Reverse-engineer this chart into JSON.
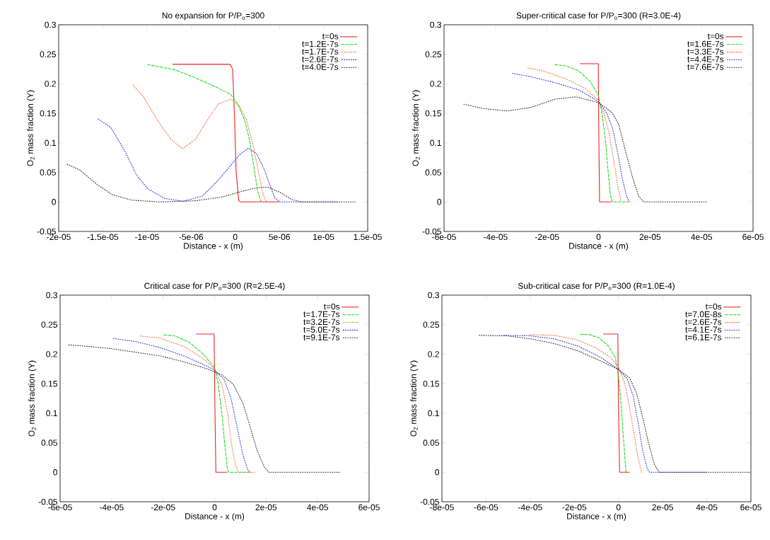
{
  "chart_data": [
    {
      "type": "line",
      "title": "No expansion for P/P$_{o}$=300",
      "xlabel": "Distance - x (m)",
      "ylabel": "O$_{2}$ mass fraction (Y)",
      "legend": "top right",
      "xlim": [
        -2e-05,
        1.5e-05
      ],
      "ylim": [
        -0.05,
        0.3
      ],
      "xticks": [
        {
          "value": -2e-05,
          "label": "-2e-05"
        },
        {
          "value": -1.5e-05,
          "label": "-1.5e-05"
        },
        {
          "value": -1e-05,
          "label": "-1e-05"
        },
        {
          "value": -5e-06,
          "label": "-5e-06"
        },
        0,
        {
          "value": 5e-06,
          "label": "5e-06"
        },
        {
          "value": 1e-05,
          "label": "1e-05"
        },
        {
          "value": 1.5e-05,
          "label": "1.5e-05"
        }
      ],
      "yticks": [
        -0.05,
        0,
        0.05,
        0.1,
        0.15,
        0.2,
        0.25,
        0.3
      ],
      "series": [
        {
          "name": "t=0s",
          "color": "#ee2222",
          "line_style": "solid",
          "x": [
            -7.1e-06,
            -6e-07,
            -3e-07,
            -1e-07,
            1e-07,
            4e-07,
            6e-07,
            5e-06
          ],
          "values": [
            0.233,
            0.233,
            0.225,
            0.15,
            0.05,
            0.002,
            0,
            0
          ]
        },
        {
          "name": "t=1.2E-7s",
          "color": "#22dd22",
          "line_style": "dashed",
          "x": [
            -1.01e-05,
            -6.9e-06,
            -4.5e-06,
            -2.1e-06,
            -5e-07,
            2.7e-07,
            1.07e-06,
            1.6e-06,
            2.13e-06,
            2.53e-06,
            2.93e-06
          ],
          "values": [
            0.233,
            0.224,
            0.21,
            0.194,
            0.182,
            0.166,
            0.138,
            0.106,
            0.058,
            0.018,
            0
          ]
        },
        {
          "name": "t=1.7E-7s",
          "color": "#ff6a3a",
          "line_style": "dotted",
          "x": [
            -1.17e-05,
            -1.04e-05,
            -8.8e-06,
            -7.3e-06,
            -6e-06,
            -4.5e-06,
            -3.2e-06,
            -1.9e-06,
            -5e-07,
            5e-07,
            1.3e-06,
            2.1e-06,
            2.7e-06,
            3.2e-06,
            3.6e-06,
            4.8e-06
          ],
          "values": [
            0.2,
            0.178,
            0.138,
            0.106,
            0.09,
            0.106,
            0.138,
            0.166,
            0.174,
            0.162,
            0.138,
            0.09,
            0.046,
            0.01,
            0,
            0
          ]
        },
        {
          "name": "t=2.6E-7s",
          "color": "#3333dd",
          "line_style": "dotted",
          "x": [
            -1.57e-05,
            -1.41e-05,
            -1.25e-05,
            -1.12e-05,
            -9.9e-06,
            -8e-06,
            -5.9e-06,
            -3.7e-06,
            -2.1e-06,
            -5e-07,
            5e-07,
            1.5e-06,
            2.4e-06,
            3.2e-06,
            3.9e-06,
            4.5e-06,
            5.1e-06,
            1.15e-05
          ],
          "values": [
            0.142,
            0.126,
            0.086,
            0.046,
            0.022,
            0.006,
            0.001,
            0.01,
            0.034,
            0.062,
            0.08,
            0.091,
            0.082,
            0.058,
            0.03,
            0.006,
            0,
            0
          ]
        },
        {
          "name": "t=4.0E-7s",
          "color": "#333333",
          "line_style": "dotted",
          "x": [
            -1.92e-05,
            -1.76e-05,
            -1.57e-05,
            -1.39e-05,
            -1.17e-05,
            -8.5e-06,
            -4.5e-06,
            -1.6e-06,
            8e-07,
            2.4e-06,
            3.7e-06,
            5.1e-06,
            6.4e-06,
            7.5e-06,
            1.36e-05
          ],
          "values": [
            0.065,
            0.054,
            0.03,
            0.012,
            0.003,
            0,
            0.002,
            0.008,
            0.018,
            0.024,
            0.025,
            0.016,
            0.004,
            0,
            0
          ]
        }
      ]
    },
    {
      "type": "line",
      "title": "Super-critical case for P/P$_{o}$=300 (R=3.0E-4)",
      "xlabel": "Distance - x (m)",
      "ylabel": "O$_{2}$ mass fraction (Y)",
      "legend": "top right",
      "xlim": [
        -6e-05,
        6e-05
      ],
      "ylim": [
        -0.05,
        0.3
      ],
      "xticks": [
        {
          "value": -6e-05,
          "label": "-6e-05"
        },
        {
          "value": -4e-05,
          "label": "-4e-05"
        },
        {
          "value": -2e-05,
          "label": "-2e-05"
        },
        0,
        {
          "value": 2e-05,
          "label": "2e-05"
        },
        {
          "value": 4e-05,
          "label": "4e-05"
        },
        {
          "value": 6e-05,
          "label": "6e-05"
        }
      ],
      "yticks": [
        -0.05,
        0,
        0.05,
        0.1,
        0.15,
        0.2,
        0.25,
        0.3
      ],
      "series": [
        {
          "name": "t=0s",
          "color": "#ee2222",
          "line_style": "solid",
          "x": [
            -7.2e-06,
            -1e-07,
            1e-07,
            4e-07,
            5e-06
          ],
          "values": [
            0.234,
            0.234,
            0.117,
            0,
            0
          ]
        },
        {
          "name": "t=1.6E-7s",
          "color": "#22dd22",
          "line_style": "dashed",
          "x": [
            -1.75e-05,
            -1.24e-05,
            -7.8e-06,
            -3.2e-06,
            0,
            1.4e-06,
            2.8e-06,
            3.7e-06,
            4.6e-06,
            5.3e-06,
            1.15e-05
          ],
          "values": [
            0.233,
            0.23,
            0.222,
            0.204,
            0.18,
            0.148,
            0.1,
            0.052,
            0.012,
            0,
            0
          ]
        },
        {
          "name": "t=3.3E-7s",
          "color": "#ff6a3a",
          "line_style": "dotted",
          "x": [
            -2.8e-05,
            -2.16e-05,
            -1.24e-05,
            -5.1e-06,
            0,
            2.3e-06,
            4.1e-06,
            6e-06,
            7.4e-06,
            8.7e-06
          ],
          "values": [
            0.227,
            0.222,
            0.208,
            0.192,
            0.172,
            0.148,
            0.116,
            0.068,
            0.028,
            0
          ]
        },
        {
          "name": "t=4.4E-7s",
          "color": "#3333dd",
          "line_style": "dotted",
          "x": [
            -3.4e-05,
            -2.62e-05,
            -1.7e-05,
            -7.8e-06,
            0,
            3.2e-06,
            5.5e-06,
            7.4e-06,
            9.2e-06,
            1.1e-05,
            1.2e-05
          ],
          "values": [
            0.218,
            0.212,
            0.202,
            0.19,
            0.17,
            0.15,
            0.124,
            0.084,
            0.04,
            0.008,
            0
          ]
        },
        {
          "name": "t=7.6E-7s",
          "color": "#333333",
          "line_style": "dotted",
          "x": [
            -5.29e-05,
            -4.46e-05,
            -3.54e-05,
            -2.62e-05,
            -1.7e-05,
            -8.7e-06,
            0,
            5.1e-06,
            7.8e-06,
            1.06e-05,
            1.33e-05,
            1.56e-05,
            1.75e-05,
            4.23e-05
          ],
          "values": [
            0.166,
            0.158,
            0.154,
            0.16,
            0.174,
            0.178,
            0.168,
            0.152,
            0.132,
            0.084,
            0.04,
            0.01,
            0,
            0
          ]
        }
      ]
    },
    {
      "type": "line",
      "title": "Critical case for P/P$_{o}$=300 (R=2.5E-4)",
      "xlabel": "Distance - x (m)",
      "ylabel": "O$_{2}$ mass fraction (Y)",
      "legend": "top right",
      "xlim": [
        -6e-05,
        6e-05
      ],
      "ylim": [
        -0.05,
        0.3
      ],
      "xticks": [
        {
          "value": -6e-05,
          "label": "-6e-05"
        },
        {
          "value": -4e-05,
          "label": "-4e-05"
        },
        {
          "value": -2e-05,
          "label": "-2e-05"
        },
        0,
        {
          "value": 2e-05,
          "label": "2e-05"
        },
        {
          "value": 4e-05,
          "label": "4e-05"
        },
        {
          "value": 6e-05,
          "label": "6e-05"
        }
      ],
      "yticks": [
        -0.05,
        0,
        0.05,
        0.1,
        0.15,
        0.2,
        0.25,
        0.3
      ],
      "series": [
        {
          "name": "t=0s",
          "color": "#ee2222",
          "line_style": "solid",
          "x": [
            -7.2e-06,
            -2e-07,
            1e-07,
            5e-07,
            5e-06
          ],
          "values": [
            0.234,
            0.234,
            0.117,
            0,
            0
          ]
        },
        {
          "name": "t=1.7E-7s",
          "color": "#22dd22",
          "line_style": "dashed",
          "x": [
            -2.02e-05,
            -1.56e-05,
            -1.01e-05,
            -4.6e-06,
            0,
            1.4e-06,
            2.8e-06,
            3.9e-06,
            5e-06,
            5.5e-06,
            1.38e-05
          ],
          "values": [
            0.233,
            0.231,
            0.221,
            0.201,
            0.177,
            0.149,
            0.101,
            0.049,
            0.005,
            0,
            0
          ]
        },
        {
          "name": "t=3.2E-7s",
          "color": "#ff6a3a",
          "line_style": "dotted",
          "x": [
            -2.94e-05,
            -2.11e-05,
            -1.19e-05,
            -4.6e-06,
            0,
            2.8e-06,
            5e-06,
            6.4e-06,
            7.8e-06,
            9.2e-06,
            1.56e-05
          ],
          "values": [
            0.231,
            0.227,
            0.213,
            0.193,
            0.175,
            0.149,
            0.101,
            0.053,
            0.017,
            0,
            0
          ]
        },
        {
          "name": "t=5.0E-7s",
          "color": "#3333dd",
          "line_style": "dotted",
          "x": [
            -3.99e-05,
            -3.03e-05,
            -2.11e-05,
            -1.19e-05,
            -4.6e-06,
            0,
            3.7e-06,
            6.4e-06,
            8.7e-06,
            1.1e-05,
            1.28e-05,
            1.38e-05
          ],
          "values": [
            0.227,
            0.221,
            0.211,
            0.197,
            0.183,
            0.173,
            0.157,
            0.125,
            0.077,
            0.029,
            0.005,
            0
          ]
        },
        {
          "name": "t=9.1E-7s",
          "color": "#333333",
          "line_style": "dotted",
          "x": [
            -5.73e-05,
            -4.86e-05,
            -3.94e-05,
            -3.03e-05,
            -2.11e-05,
            -1.19e-05,
            -2.8e-06,
            2.8e-06,
            7.3e-06,
            1.1e-05,
            1.38e-05,
            1.65e-05,
            1.93e-05,
            2.11e-05,
            4.9e-05
          ],
          "values": [
            0.216,
            0.213,
            0.209,
            0.203,
            0.197,
            0.187,
            0.175,
            0.165,
            0.149,
            0.117,
            0.077,
            0.037,
            0.009,
            0,
            0
          ]
        }
      ]
    },
    {
      "type": "line",
      "title": "Sub-critical case for P/P$_{o}$=300 (R=1.0E-4)",
      "xlabel": "Distance - x (m)",
      "ylabel": "O$_{2}$ mass fraction (Y)",
      "legend": "top right",
      "xlim": [
        -8e-05,
        6e-05
      ],
      "ylim": [
        -0.05,
        0.3
      ],
      "xticks": [
        {
          "value": -8e-05,
          "label": "-8e-05"
        },
        {
          "value": -6e-05,
          "label": "-6e-05"
        },
        {
          "value": -4e-05,
          "label": "-4e-05"
        },
        {
          "value": -2e-05,
          "label": "-2e-05"
        },
        0,
        {
          "value": 2e-05,
          "label": "2e-05"
        },
        {
          "value": 4e-05,
          "label": "4e-05"
        },
        {
          "value": 6e-05,
          "label": "6e-05"
        }
      ],
      "yticks": [
        -0.05,
        0,
        0.05,
        0.1,
        0.15,
        0.2,
        0.25,
        0.3
      ],
      "series": [
        {
          "name": "t=0s",
          "color": "#ee2222",
          "line_style": "solid",
          "x": [
            -6.9e-06,
            -3e-07,
            0,
            5e-07,
            5e-06
          ],
          "values": [
            0.234,
            0.234,
            0.117,
            0,
            0
          ]
        },
        {
          "name": "t=7.0E-8s",
          "color": "#22dd22",
          "line_style": "dashed",
          "x": [
            -1.79e-05,
            -1.31e-05,
            -8.9e-06,
            -4.6e-06,
            -1.4e-06,
            2e-07,
            1.3e-06,
            2.4e-06,
            3.4e-06
          ],
          "values": [
            0.234,
            0.233,
            0.228,
            0.214,
            0.194,
            0.158,
            0.11,
            0.05,
            0
          ]
        },
        {
          "name": "t=2.6E-7s",
          "color": "#ff6a3a",
          "line_style": "dotted",
          "x": [
            -4.09e-05,
            -2.92e-05,
            -1.85e-05,
            -9.9e-06,
            -3.5e-06,
            0,
            2.9e-06,
            5e-06,
            7.2e-06,
            8.8e-06,
            1.04e-05
          ],
          "values": [
            0.233,
            0.232,
            0.224,
            0.21,
            0.194,
            0.178,
            0.15,
            0.11,
            0.062,
            0.026,
            0
          ]
        },
        {
          "name": "t=4.1E-7s",
          "color": "#3333dd",
          "line_style": "dotted",
          "x": [
            -5.27e-05,
            -3.99e-05,
            -2.92e-05,
            -1.85e-05,
            -7.8e-06,
            0,
            4e-06,
            6.6e-06,
            8.8e-06,
            1.09e-05,
            1.3e-05,
            1.41e-05,
            4.03e-05
          ],
          "values": [
            0.232,
            0.231,
            0.226,
            0.214,
            0.194,
            0.174,
            0.158,
            0.13,
            0.086,
            0.038,
            0.006,
            0,
            0
          ]
        },
        {
          "name": "t=6.1E-7s",
          "color": "#333333",
          "line_style": "dotted",
          "x": [
            -6.39e-05,
            -5.05e-05,
            -3.99e-05,
            -2.92e-05,
            -1.85e-05,
            -7.8e-06,
            0,
            5e-06,
            8.2e-06,
            1.09e-05,
            1.36e-05,
            1.62e-05,
            1.84e-05,
            5.95e-05
          ],
          "values": [
            0.232,
            0.231,
            0.226,
            0.218,
            0.206,
            0.188,
            0.174,
            0.16,
            0.134,
            0.094,
            0.05,
            0.014,
            0,
            0
          ]
        }
      ]
    }
  ]
}
